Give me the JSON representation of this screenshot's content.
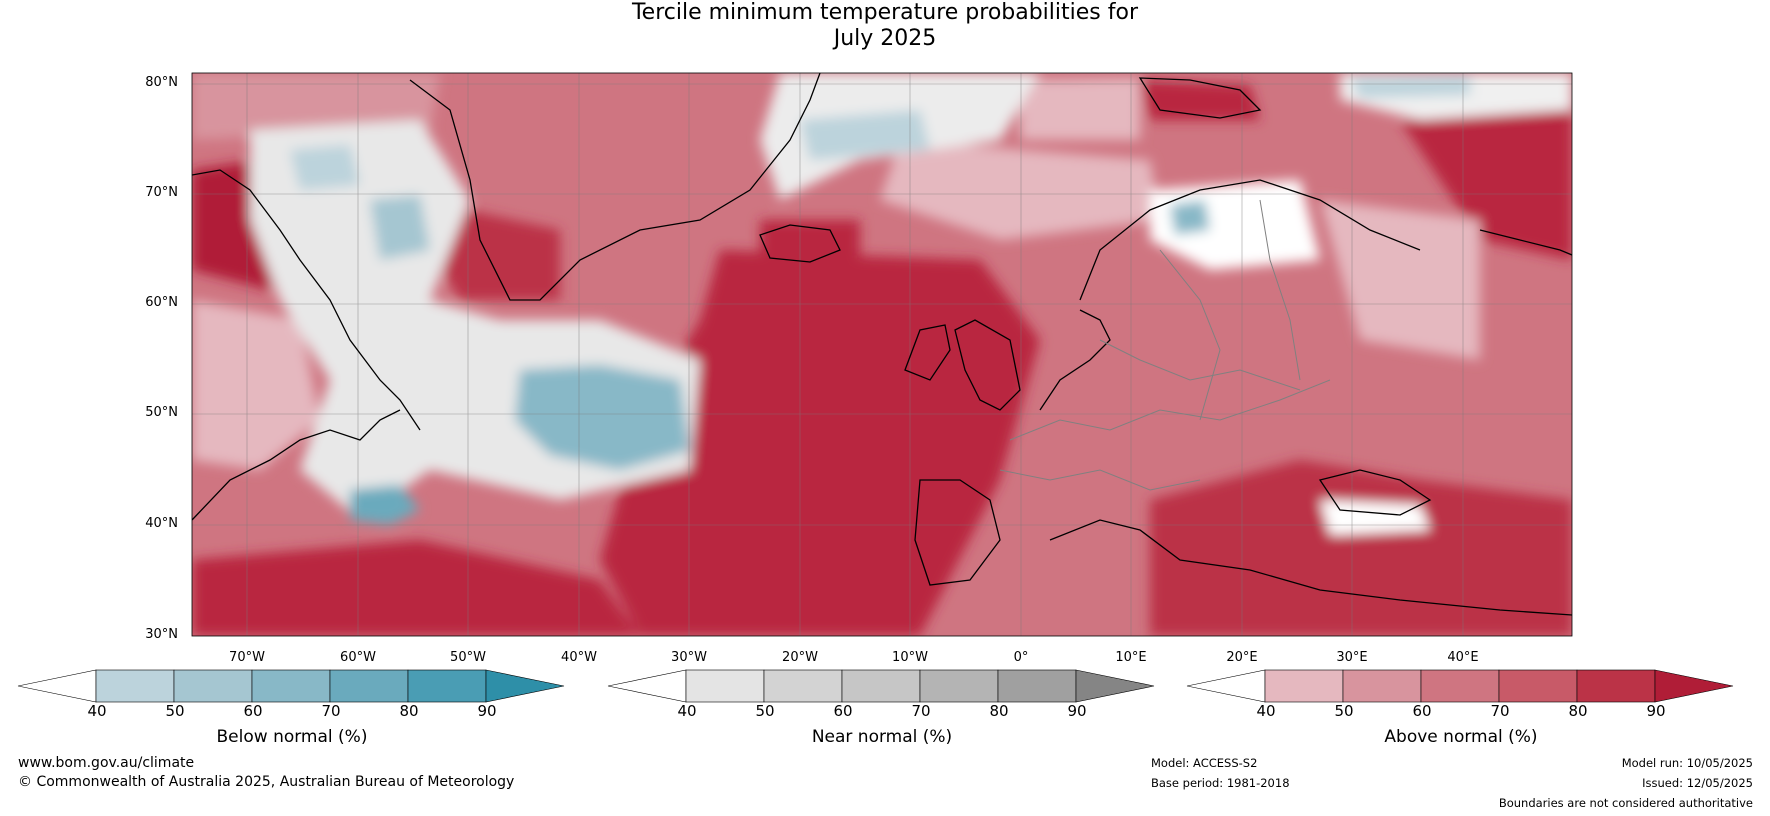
{
  "title": {
    "line1": "Tercile minimum temperature probabilities for",
    "line2": "July 2025"
  },
  "map": {
    "region": "North Atlantic and Europe",
    "lat_labels": [
      "80°N",
      "70°N",
      "60°N",
      "50°N",
      "40°N",
      "30°N"
    ],
    "lon_labels": [
      "70°W",
      "60°W",
      "50°W",
      "40°W",
      "30°W",
      "20°W",
      "10°W",
      "0°",
      "10°E",
      "20°E",
      "30°E",
      "40°E"
    ]
  },
  "colorbars": [
    {
      "id": "below",
      "label": "Below normal (%)",
      "ticks": [
        "40",
        "50",
        "60",
        "70",
        "80",
        "90"
      ],
      "colors": [
        "#ffffff",
        "#bcd3dc",
        "#a5c6d1",
        "#88b8c7",
        "#6aaabd",
        "#4a9db4",
        "#2e8fa8"
      ]
    },
    {
      "id": "near",
      "label": "Near normal (%)",
      "ticks": [
        "40",
        "50",
        "60",
        "70",
        "80",
        "90"
      ],
      "colors": [
        "#ffffff",
        "#e4e4e4",
        "#d3d3d3",
        "#c6c6c6",
        "#b4b4b4",
        "#a0a0a0",
        "#858585"
      ]
    },
    {
      "id": "above",
      "label": "Above normal (%)",
      "ticks": [
        "40",
        "50",
        "60",
        "70",
        "80",
        "90"
      ],
      "colors": [
        "#ffffff",
        "#e5b8bf",
        "#d8949e",
        "#cf7581",
        "#c85a68",
        "#bb3347",
        "#b01d37"
      ]
    }
  ],
  "footer": {
    "website": "www.bom.gov.au/climate",
    "copyright": "© Commonwealth of Australia 2025, Australian Bureau of Meteorology",
    "model": "Model: ACCESS-S2",
    "base_period": "Base period: 1981-2018",
    "model_run": "Model run: 10/05/2025",
    "issued": "Issued: 12/05/2025",
    "disclaimer": "Boundaries are not considered authoritative"
  }
}
